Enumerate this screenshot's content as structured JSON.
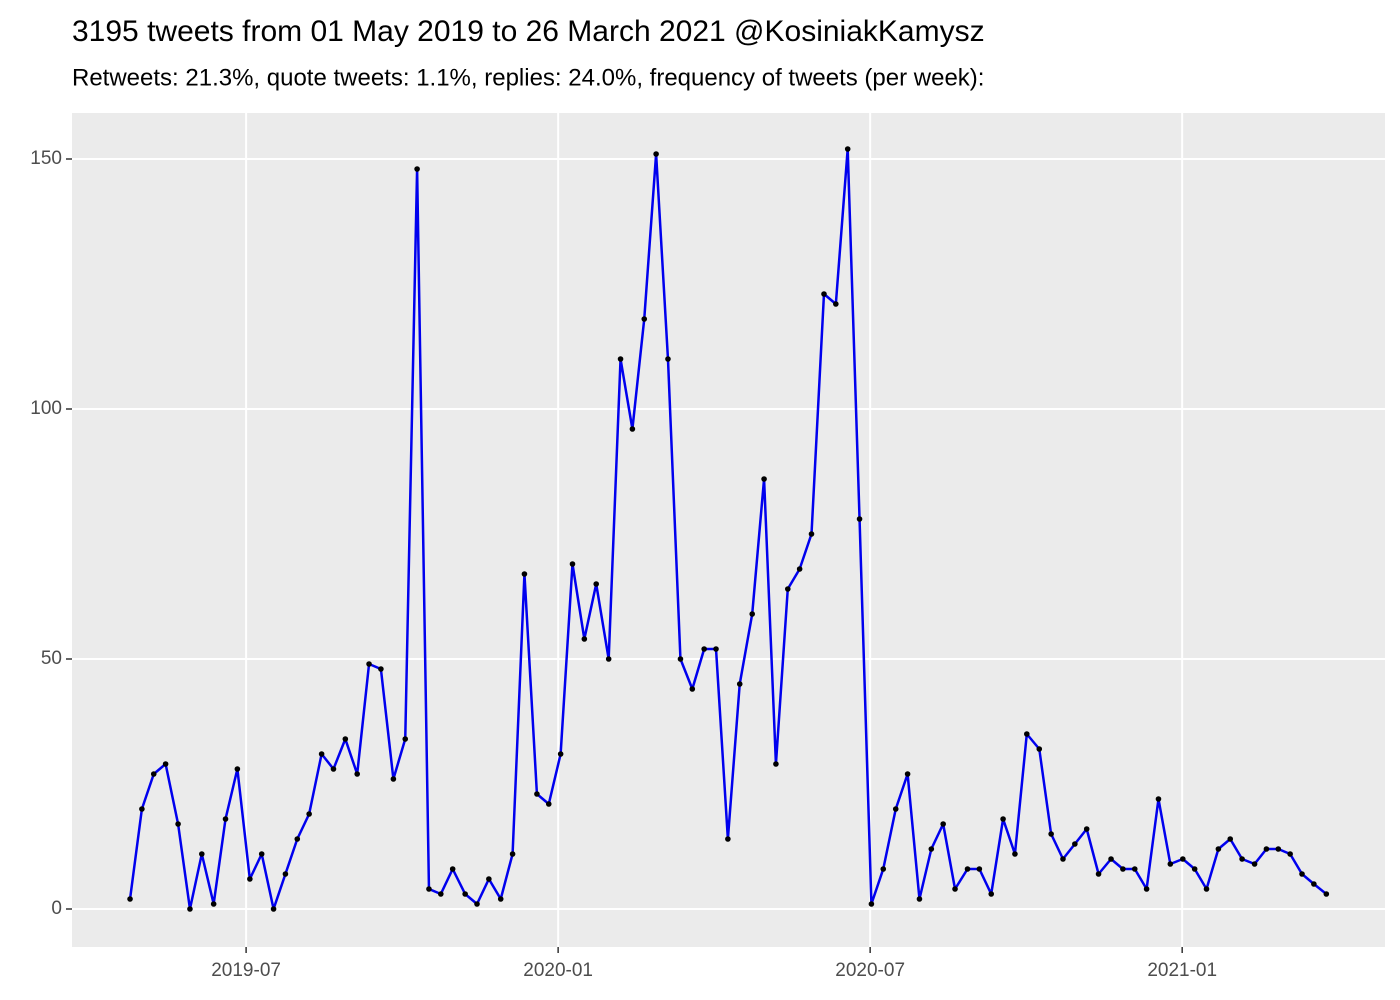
{
  "chart_data": {
    "type": "line",
    "title": "3195 tweets from 01 May 2019 to 26 March 2021 @KosiniakKamysz",
    "subtitle": "Retweets: 21.3%, quote tweets: 1.1%, replies: 24.0%, frequency of tweets (per week):",
    "x": [
      2019.314,
      2019.333,
      2019.352,
      2019.371,
      2019.391,
      2019.41,
      2019.429,
      2019.448,
      2019.467,
      2019.486,
      2019.506,
      2019.525,
      2019.544,
      2019.563,
      2019.582,
      2019.601,
      2019.621,
      2019.64,
      2019.659,
      2019.678,
      2019.697,
      2019.716,
      2019.736,
      2019.755,
      2019.774,
      2019.793,
      2019.812,
      2019.831,
      2019.851,
      2019.87,
      2019.889,
      2019.908,
      2019.927,
      2019.946,
      2019.966,
      2019.985,
      2020.004,
      2020.023,
      2020.042,
      2020.061,
      2020.081,
      2020.1,
      2020.119,
      2020.138,
      2020.157,
      2020.176,
      2020.196,
      2020.215,
      2020.234,
      2020.253,
      2020.272,
      2020.291,
      2020.311,
      2020.33,
      2020.349,
      2020.368,
      2020.387,
      2020.406,
      2020.426,
      2020.445,
      2020.464,
      2020.483,
      2020.502,
      2020.521,
      2020.541,
      2020.56,
      2020.579,
      2020.598,
      2020.617,
      2020.636,
      2020.656,
      2020.675,
      2020.694,
      2020.713,
      2020.732,
      2020.751,
      2020.771,
      2020.79,
      2020.809,
      2020.828,
      2020.847,
      2020.866,
      2020.886,
      2020.905,
      2020.924,
      2020.943,
      2020.962,
      2020.981,
      2021.001,
      2021.02,
      2021.039,
      2021.058,
      2021.077,
      2021.096,
      2021.116,
      2021.135,
      2021.154,
      2021.173,
      2021.192,
      2021.211,
      2021.231
    ],
    "values": [
      2,
      20,
      27,
      29,
      17,
      0,
      11,
      1,
      18,
      28,
      6,
      11,
      0,
      7,
      14,
      19,
      31,
      28,
      34,
      27,
      49,
      48,
      26,
      34,
      148,
      4,
      3,
      8,
      3,
      1,
      6,
      2,
      11,
      67,
      23,
      21,
      31,
      69,
      54,
      65,
      50,
      110,
      96,
      118,
      151,
      110,
      50,
      44,
      52,
      52,
      14,
      45,
      59,
      86,
      29,
      64,
      68,
      75,
      123,
      121,
      152,
      78,
      1,
      8,
      20,
      27,
      2,
      12,
      17,
      4,
      8,
      8,
      3,
      18,
      11,
      35,
      32,
      15,
      10,
      13,
      16,
      7,
      10,
      8,
      8,
      4,
      22,
      9,
      10,
      8,
      4,
      12,
      14,
      10,
      9,
      12,
      12,
      11,
      7,
      5,
      3
    ],
    "color": "#0000ee",
    "point_color": "#000000",
    "xlim": [
      2019.221,
      2021.325
    ],
    "xticks": [
      {
        "value": 2019.5,
        "label": "2019-07"
      },
      {
        "value": 2020,
        "label": "2020-01"
      },
      {
        "value": 2020.5,
        "label": "2020-07"
      },
      {
        "value": 2021,
        "label": "2021-01"
      }
    ],
    "ylim": [
      -7.6,
      159.2
    ],
    "yticks": [
      0,
      50,
      100,
      150
    ],
    "grid": true
  }
}
